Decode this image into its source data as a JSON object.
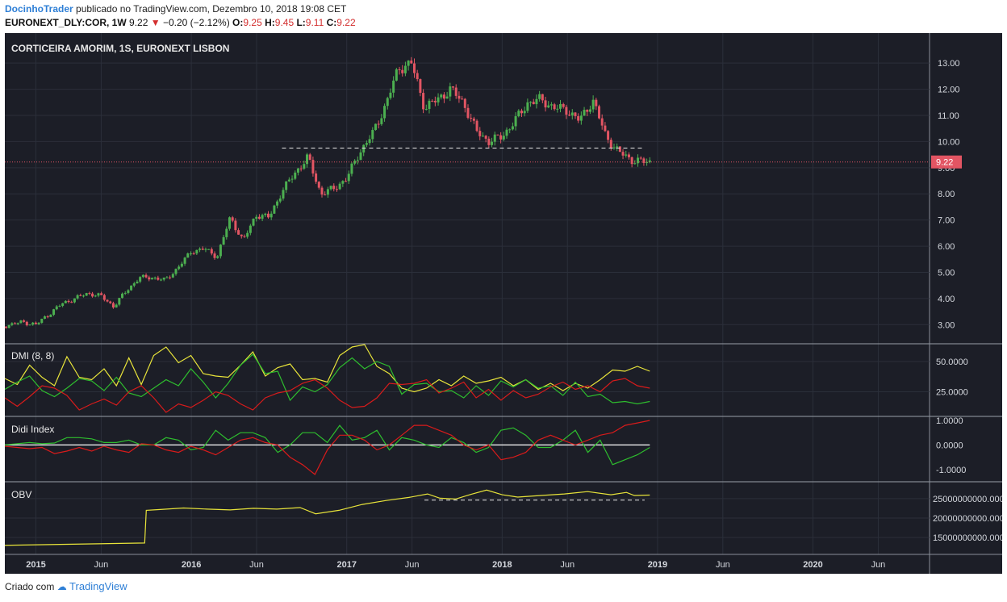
{
  "header": {
    "author": "DocinhoTrader",
    "published_text": "publicado no TradingView.com, Dezembro 10, 2018 19:08 CET",
    "symbol": "EURONEXT_DLY:COR, 1W",
    "last": "9.22",
    "change": "−0.20 (−2.12%)",
    "open_label": "O:",
    "open": "9.25",
    "high_label": "H:",
    "high": "9.45",
    "low_label": "L:",
    "low": "9.11",
    "close_label": "C:",
    "close": "9.22"
  },
  "footer": {
    "created_with": "Criado com",
    "brand": "TradingView"
  },
  "colors": {
    "background": "#1c1e27",
    "grid": "#2b2f3a",
    "up": "#4caf50",
    "down": "#e25563",
    "yellow": "#e8e43a",
    "green": "#2ebd2e",
    "red": "#d81b1b",
    "white": "#ffffff",
    "price_badge": "#e25563"
  },
  "chart_data": [
    {
      "type": "candlestick",
      "title": "CORTICEIRA AMORIM, 1S, EURONEXT LISBON",
      "ylim": [
        2.3,
        13.9
      ],
      "yticks": [
        "13.00",
        "12.00",
        "11.00",
        "10.00",
        "9.00",
        "8.00",
        "7.00",
        "6.00",
        "5.00",
        "4.00",
        "3.00"
      ],
      "xticks": [
        "2015",
        "Jun",
        "2016",
        "Jun",
        "2017",
        "Jun",
        "2018",
        "Jun",
        "2019",
        "Jun",
        "2020",
        "Jun"
      ],
      "last_price_label": "9.22",
      "last_price": 9.22,
      "support_lines": [
        {
          "from": "2016-08",
          "to": "2018-12",
          "value": 9.75
        }
      ],
      "close_path": [
        [
          "2014-10",
          2.9
        ],
        [
          "2014-11",
          3.0
        ],
        [
          "2014-12",
          3.1
        ],
        [
          "2015-01",
          3.0
        ],
        [
          "2015-02",
          3.4
        ],
        [
          "2015-03",
          3.8
        ],
        [
          "2015-04",
          4.0
        ],
        [
          "2015-05",
          4.2
        ],
        [
          "2015-06",
          4.1
        ],
        [
          "2015-07",
          3.7
        ],
        [
          "2015-08",
          4.3
        ],
        [
          "2015-09",
          4.8
        ],
        [
          "2015-10",
          4.8
        ],
        [
          "2015-11",
          4.7
        ],
        [
          "2015-12",
          5.2
        ],
        [
          "2016-01",
          5.8
        ],
        [
          "2016-02",
          5.9
        ],
        [
          "2016-03",
          5.6
        ],
        [
          "2016-04",
          7.1
        ],
        [
          "2016-05",
          6.2
        ],
        [
          "2016-06",
          7.2
        ],
        [
          "2016-07",
          7.1
        ],
        [
          "2016-08",
          8.1
        ],
        [
          "2016-09",
          8.8
        ],
        [
          "2016-10",
          9.4
        ],
        [
          "2016-11",
          8.0
        ],
        [
          "2016-12",
          8.2
        ],
        [
          "2017-01",
          8.6
        ],
        [
          "2017-02",
          9.6
        ],
        [
          "2017-03",
          10.3
        ],
        [
          "2017-04",
          11.4
        ],
        [
          "2017-05",
          12.8
        ],
        [
          "2017-06",
          13.0
        ],
        [
          "2017-07",
          11.3
        ],
        [
          "2017-08",
          11.6
        ],
        [
          "2017-09",
          12.0
        ],
        [
          "2017-10",
          11.5
        ],
        [
          "2017-11",
          10.4
        ],
        [
          "2017-12",
          10.0
        ],
        [
          "2018-01",
          10.2
        ],
        [
          "2018-02",
          10.8
        ],
        [
          "2018-03",
          11.5
        ],
        [
          "2018-04",
          11.6
        ],
        [
          "2018-05",
          11.3
        ],
        [
          "2018-06",
          11.2
        ],
        [
          "2018-07",
          10.8
        ],
        [
          "2018-08",
          11.6
        ],
        [
          "2018-09",
          10.2
        ],
        [
          "2018-10",
          9.6
        ],
        [
          "2018-11",
          9.3
        ],
        [
          "2018-12",
          9.22
        ]
      ]
    },
    {
      "type": "line",
      "title": "DMI (8, 8)",
      "ylim": [
        8,
        62
      ],
      "yticks": [
        "50.0000",
        "25.0000"
      ],
      "series": [
        {
          "color": "yellow",
          "values": [
            36,
            31,
            47,
            37,
            30,
            54,
            37,
            35,
            44,
            30,
            53,
            31,
            55,
            62,
            49,
            55,
            40,
            38,
            37,
            47,
            58,
            38,
            45,
            48,
            35,
            36,
            33,
            55,
            62,
            64,
            46,
            40,
            28,
            25,
            28,
            35,
            30,
            38,
            32,
            34,
            37,
            30,
            35,
            27,
            32,
            26,
            32,
            28,
            35,
            43,
            42,
            46,
            42
          ]
        },
        {
          "color": "green",
          "values": [
            27,
            33,
            38,
            26,
            21,
            28,
            36,
            34,
            26,
            37,
            24,
            21,
            28,
            35,
            30,
            44,
            33,
            20,
            32,
            47,
            56,
            40,
            42,
            18,
            29,
            25,
            31,
            45,
            53,
            44,
            50,
            46,
            23,
            31,
            32,
            25,
            26,
            20,
            30,
            22,
            34,
            29,
            35,
            28,
            30,
            22,
            33,
            21,
            23,
            16,
            17,
            15,
            17
          ]
        },
        {
          "color": "red",
          "values": [
            20,
            13,
            21,
            30,
            28,
            22,
            10,
            15,
            19,
            14,
            25,
            30,
            20,
            8,
            15,
            12,
            18,
            25,
            22,
            15,
            10,
            20,
            24,
            26,
            32,
            35,
            28,
            18,
            12,
            13,
            20,
            32,
            31,
            32,
            35,
            24,
            28,
            33,
            20,
            27,
            18,
            26,
            20,
            23,
            29,
            33,
            27,
            30,
            25,
            34,
            36,
            30,
            28
          ]
        }
      ]
    },
    {
      "type": "line",
      "title": "Didi Index",
      "ylim": [
        -1.4,
        1.1
      ],
      "yticks": [
        "1.0000",
        "0.0000",
        "-1.0000"
      ],
      "series": [
        {
          "color": "white",
          "values": [
            0,
            0
          ]
        },
        {
          "color": "green",
          "values": [
            0.0,
            0.05,
            0.1,
            0.05,
            0.08,
            0.3,
            0.3,
            0.25,
            0.1,
            0.1,
            0.2,
            0.0,
            0.0,
            0.3,
            0.2,
            -0.2,
            -0.1,
            0.6,
            0.2,
            0.5,
            0.5,
            0.3,
            -0.3,
            0.0,
            0.5,
            0.5,
            0.1,
            0.8,
            0.2,
            0.3,
            0.6,
            -0.2,
            0.3,
            0.2,
            0.0,
            -0.1,
            0.3,
            0.1,
            -0.3,
            -0.1,
            0.6,
            0.7,
            0.4,
            -0.1,
            -0.1,
            0.2,
            0.6,
            -0.3,
            0.2,
            -0.8,
            -0.6,
            -0.4,
            -0.1
          ]
        },
        {
          "color": "red",
          "values": [
            -0.05,
            -0.1,
            -0.15,
            -0.1,
            -0.35,
            -0.25,
            -0.1,
            -0.25,
            -0.05,
            -0.2,
            -0.3,
            0.05,
            0.0,
            -0.2,
            -0.3,
            -0.05,
            -0.2,
            -0.4,
            -0.1,
            0.2,
            0.3,
            0.1,
            0.0,
            -0.5,
            -0.8,
            -1.2,
            -0.2,
            0.4,
            0.4,
            0.2,
            -0.2,
            0.0,
            0.4,
            0.8,
            0.8,
            0.6,
            0.4,
            0.0,
            -0.2,
            0.0,
            -0.6,
            -0.5,
            -0.3,
            0.2,
            0.4,
            0.2,
            0.0,
            0.2,
            0.4,
            0.5,
            0.8,
            0.9,
            1.0
          ]
        }
      ]
    },
    {
      "type": "line",
      "title": "OBV",
      "ylim": [
        11500000000,
        28500000000
      ],
      "yticks": [
        "25000000000.0000",
        "20000000000.0000",
        "15000000000.0000"
      ],
      "support_lines": [
        {
          "from": "2017-07",
          "to": "2018-12",
          "value": 24600000000
        }
      ],
      "series": [
        {
          "color": "yellow",
          "values": [
            [
              2014.79,
              13000000000
            ],
            [
              2015.7,
              13600000000
            ],
            [
              2015.71,
              22000000000
            ],
            [
              2015.8,
              22200000000
            ],
            [
              2015.95,
              22600000000
            ],
            [
              2016.1,
              22300000000
            ],
            [
              2016.25,
              22100000000
            ],
            [
              2016.4,
              22500000000
            ],
            [
              2016.55,
              22300000000
            ],
            [
              2016.7,
              22700000000
            ],
            [
              2016.8,
              21100000000
            ],
            [
              2016.95,
              22000000000
            ],
            [
              2017.1,
              23500000000
            ],
            [
              2017.25,
              24500000000
            ],
            [
              2017.4,
              25300000000
            ],
            [
              2017.52,
              26200000000
            ],
            [
              2017.6,
              25100000000
            ],
            [
              2017.7,
              24900000000
            ],
            [
              2017.8,
              26100000000
            ],
            [
              2017.9,
              27200000000
            ],
            [
              2018.0,
              26000000000
            ],
            [
              2018.1,
              25400000000
            ],
            [
              2018.25,
              25800000000
            ],
            [
              2018.4,
              26200000000
            ],
            [
              2018.55,
              26800000000
            ],
            [
              2018.7,
              26000000000
            ],
            [
              2018.8,
              26600000000
            ],
            [
              2018.85,
              25800000000
            ],
            [
              2018.95,
              25900000000
            ]
          ]
        }
      ]
    }
  ],
  "pane_labels": {
    "price": "CORTICEIRA AMORIM, 1S, EURONEXT LISBON",
    "dmi": "DMI (8, 8)",
    "didi": "Didi Index",
    "obv": "OBV"
  }
}
